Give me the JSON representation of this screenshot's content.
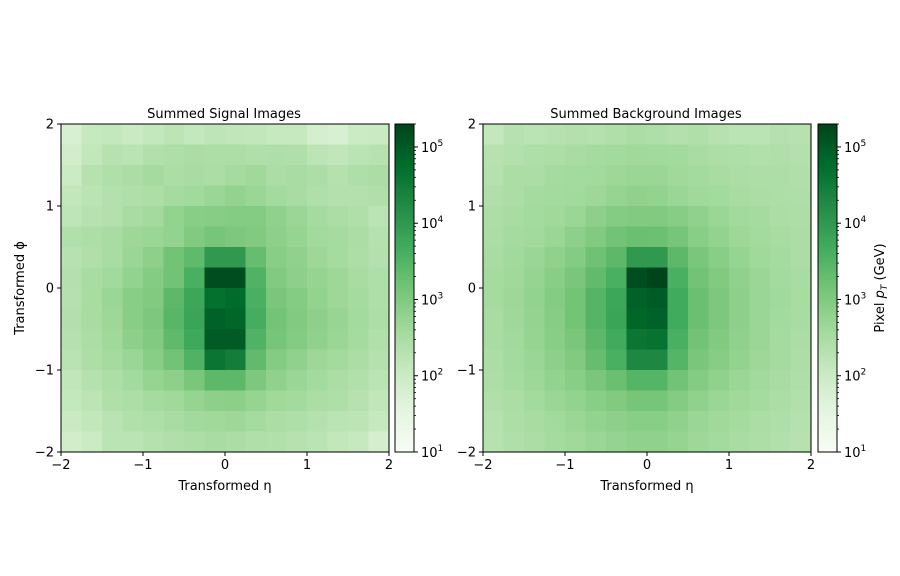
{
  "colors": {
    "cmap": [
      "#f7fcf5",
      "#e5f5e0",
      "#c7e9c0",
      "#a1d99b",
      "#74c476",
      "#41ab5d",
      "#238b45",
      "#006d2c",
      "#00441b"
    ],
    "axis": "#000000",
    "background": "#ffffff"
  },
  "chart_data": [
    {
      "type": "heatmap",
      "title": "Summed Signal Images",
      "xlabel": "Transformed η",
      "ylabel": "Transformed ϕ",
      "xlim": [
        -2,
        2
      ],
      "ylim": [
        -2,
        2
      ],
      "xticks": [
        "−2",
        "−1",
        "0",
        "1",
        "2"
      ],
      "yticks": [
        "−2",
        "−1",
        "0",
        "1",
        "2"
      ],
      "xtick_values": [
        -2,
        -1,
        0,
        1,
        2
      ],
      "ytick_values": [
        -2,
        -1,
        0,
        1,
        2
      ],
      "grid": false,
      "colorscale": {
        "type": "log",
        "min": 10,
        "max": 200000,
        "cmap": "Greens"
      },
      "colorbar_ticks": [
        {
          "value": 10,
          "base": "10",
          "exp": "1"
        },
        {
          "value": 100,
          "base": "10",
          "exp": "2"
        },
        {
          "value": 1000,
          "base": "10",
          "exp": "3"
        },
        {
          "value": 10000,
          "base": "10",
          "exp": "4"
        },
        {
          "value": 100000,
          "base": "10",
          "exp": "5"
        }
      ],
      "colorbar_label": "",
      "z_order": "rows from top (ϕ = +2) to bottom (ϕ = −2), columns from η = −2 to η = +2",
      "z": [
        [
          60,
          120,
          130,
          110,
          130,
          170,
          130,
          160,
          150,
          140,
          120,
          120,
          70,
          60,
          100,
          110
        ],
        [
          80,
          140,
          200,
          180,
          240,
          260,
          300,
          280,
          280,
          250,
          260,
          250,
          170,
          150,
          180,
          200
        ],
        [
          100,
          200,
          250,
          300,
          350,
          300,
          320,
          300,
          350,
          420,
          300,
          320,
          270,
          220,
          260,
          300
        ],
        [
          140,
          180,
          230,
          250,
          280,
          350,
          400,
          500,
          600,
          500,
          380,
          320,
          250,
          230,
          230,
          250
        ],
        [
          160,
          200,
          230,
          320,
          370,
          600,
          800,
          850,
          900,
          900,
          650,
          480,
          350,
          300,
          250,
          180
        ],
        [
          240,
          280,
          320,
          450,
          500,
          600,
          1000,
          1300,
          1100,
          1000,
          700,
          550,
          400,
          350,
          300,
          220
        ],
        [
          200,
          250,
          320,
          500,
          700,
          1500,
          2300,
          10000,
          10000,
          2000,
          800,
          650,
          450,
          350,
          280,
          230
        ],
        [
          230,
          320,
          400,
          600,
          900,
          1500,
          4000,
          150000,
          150000,
          3500,
          1000,
          700,
          550,
          450,
          330,
          260
        ],
        [
          220,
          330,
          500,
          800,
          1000,
          2500,
          6000,
          50000,
          60000,
          4000,
          1200,
          900,
          600,
          450,
          350,
          260
        ],
        [
          240,
          330,
          450,
          800,
          1100,
          2800,
          6500,
          80000,
          70000,
          4500,
          1400,
          1000,
          700,
          520,
          380,
          280
        ],
        [
          220,
          300,
          420,
          700,
          1000,
          2300,
          5500,
          100000,
          100000,
          3500,
          1300,
          900,
          650,
          480,
          350,
          240
        ],
        [
          190,
          280,
          350,
          500,
          800,
          1500,
          3500,
          40000,
          30000,
          2200,
          900,
          650,
          450,
          370,
          300,
          220
        ],
        [
          150,
          220,
          280,
          380,
          550,
          700,
          1200,
          2500,
          2500,
          1100,
          650,
          500,
          380,
          300,
          240,
          180
        ],
        [
          130,
          170,
          250,
          280,
          350,
          420,
          550,
          700,
          750,
          550,
          420,
          380,
          300,
          260,
          200,
          150
        ],
        [
          110,
          140,
          190,
          240,
          260,
          320,
          400,
          420,
          450,
          350,
          300,
          260,
          220,
          180,
          170,
          120
        ],
        [
          80,
          100,
          180,
          180,
          220,
          250,
          280,
          320,
          300,
          250,
          240,
          200,
          180,
          140,
          120,
          70
        ]
      ]
    },
    {
      "type": "heatmap",
      "title": "Summed Background Images",
      "xlabel": "Transformed η",
      "ylabel": "",
      "xlim": [
        -2,
        2
      ],
      "ylim": [
        -2,
        2
      ],
      "xticks": [
        "−2",
        "−1",
        "0",
        "1",
        "2"
      ],
      "yticks": [
        "−2",
        "−1",
        "0",
        "1",
        "2"
      ],
      "xtick_values": [
        -2,
        -1,
        0,
        1,
        2
      ],
      "ytick_values": [
        -2,
        -1,
        0,
        1,
        2
      ],
      "grid": false,
      "colorscale": {
        "type": "log",
        "min": 10,
        "max": 200000,
        "cmap": "Greens"
      },
      "colorbar_ticks": [
        {
          "value": 10,
          "base": "10",
          "exp": "1"
        },
        {
          "value": 100,
          "base": "10",
          "exp": "2"
        },
        {
          "value": 1000,
          "base": "10",
          "exp": "3"
        },
        {
          "value": 10000,
          "base": "10",
          "exp": "4"
        },
        {
          "value": 100000,
          "base": "10",
          "exp": "5"
        }
      ],
      "colorbar_label_prefix": "Pixel ",
      "colorbar_label_var": "p",
      "colorbar_label_sub": "T",
      "colorbar_label_suffix": " (GeV)",
      "z_order": "rows from top (ϕ = +2) to bottom (ϕ = −2), columns from η = −2 to η = +2",
      "z": [
        [
          130,
          200,
          180,
          200,
          230,
          220,
          250,
          300,
          260,
          230,
          250,
          200,
          180,
          180,
          220,
          200
        ],
        [
          200,
          230,
          260,
          280,
          320,
          350,
          380,
          420,
          400,
          380,
          320,
          280,
          260,
          240,
          250,
          230
        ],
        [
          220,
          300,
          300,
          350,
          380,
          400,
          450,
          500,
          480,
          420,
          380,
          330,
          300,
          280,
          270,
          250
        ],
        [
          250,
          300,
          350,
          380,
          400,
          450,
          550,
          650,
          600,
          500,
          420,
          380,
          330,
          300,
          280,
          260
        ],
        [
          280,
          330,
          380,
          420,
          500,
          700,
          900,
          1000,
          1000,
          850,
          650,
          500,
          400,
          350,
          300,
          280
        ],
        [
          300,
          350,
          400,
          500,
          700,
          1000,
          1500,
          1800,
          1700,
          1300,
          800,
          600,
          450,
          380,
          330,
          300
        ],
        [
          320,
          400,
          500,
          650,
          900,
          1600,
          2500,
          10000,
          10000,
          2500,
          1200,
          800,
          550,
          420,
          350,
          300
        ],
        [
          350,
          420,
          550,
          800,
          1200,
          2200,
          4000,
          150000,
          200000,
          4000,
          1500,
          1000,
          650,
          480,
          380,
          320
        ],
        [
          350,
          450,
          600,
          900,
          1400,
          3000,
          6000,
          80000,
          100000,
          5000,
          1800,
          1100,
          700,
          500,
          400,
          330
        ],
        [
          330,
          430,
          580,
          850,
          1400,
          3000,
          6500,
          70000,
          80000,
          5000,
          1800,
          1100,
          700,
          500,
          380,
          320
        ],
        [
          320,
          400,
          550,
          800,
          1200,
          2500,
          5000,
          40000,
          45000,
          4000,
          1500,
          1000,
          650,
          480,
          360,
          300
        ],
        [
          300,
          380,
          500,
          700,
          1000,
          2000,
          4000,
          20000,
          20000,
          3000,
          1200,
          850,
          600,
          450,
          350,
          280
        ],
        [
          280,
          350,
          450,
          600,
          800,
          1200,
          1800,
          3000,
          3000,
          1500,
          900,
          650,
          500,
          400,
          320,
          260
        ],
        [
          250,
          300,
          380,
          480,
          600,
          800,
          1000,
          1300,
          1300,
          900,
          650,
          500,
          420,
          350,
          300,
          240
        ],
        [
          220,
          280,
          330,
          400,
          480,
          600,
          700,
          800,
          800,
          650,
          500,
          420,
          350,
          300,
          260,
          220
        ],
        [
          200,
          250,
          300,
          350,
          420,
          500,
          580,
          650,
          650,
          550,
          450,
          380,
          320,
          280,
          240,
          200
        ]
      ]
    }
  ]
}
